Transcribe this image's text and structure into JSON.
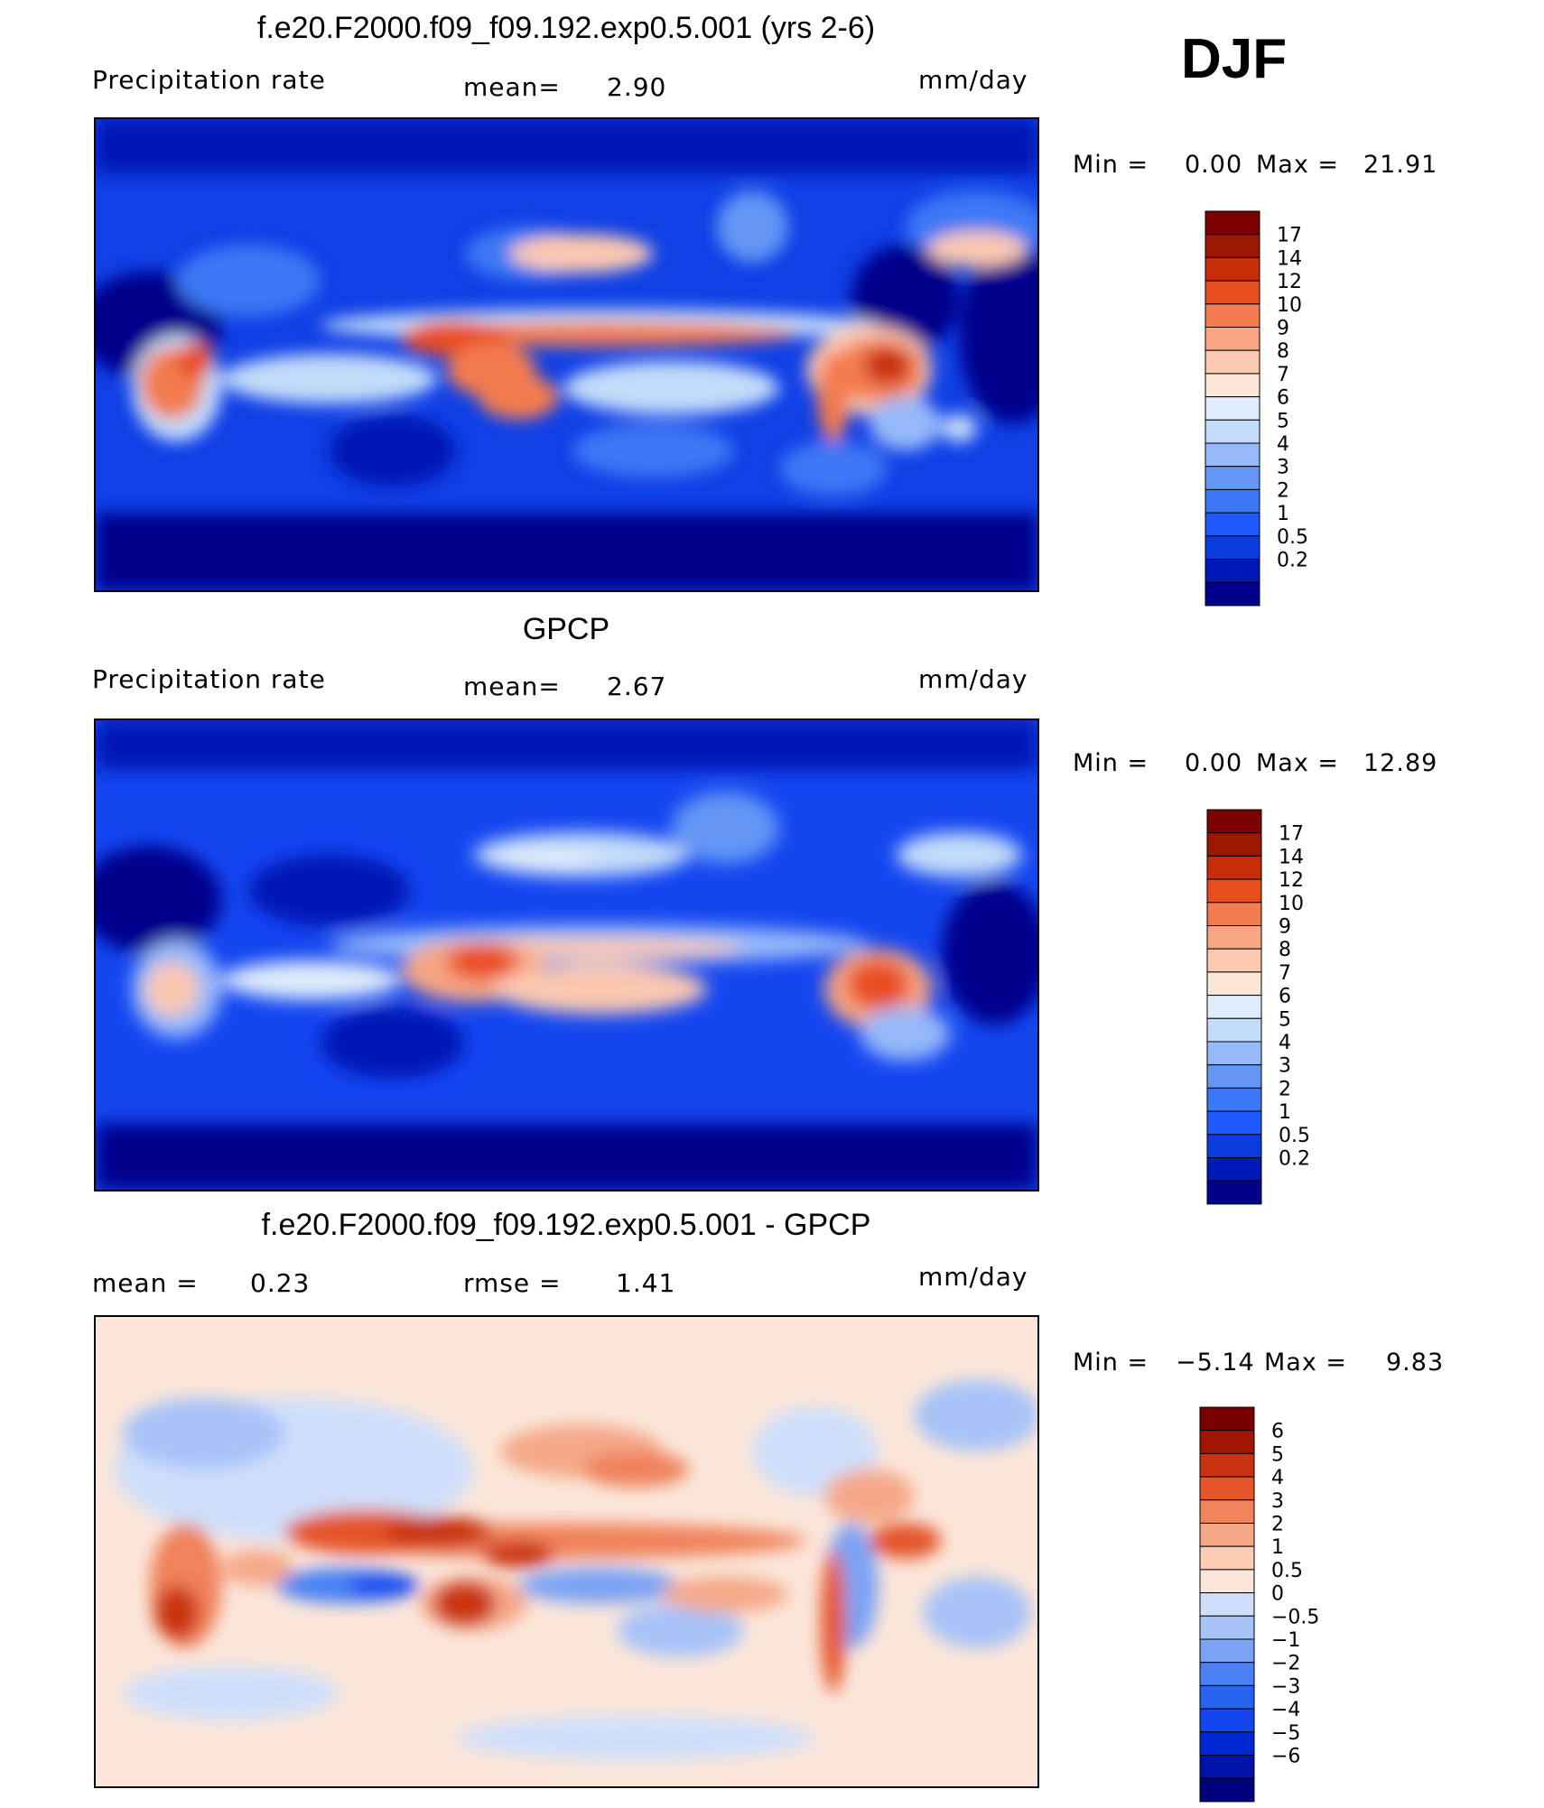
{
  "season": "DJF",
  "colors": {
    "precip": [
      "#00008b",
      "#0018b4",
      "#0a3ce0",
      "#1e5aff",
      "#3c78f5",
      "#6496f5",
      "#96b9fa",
      "#c3dcfa",
      "#dfecfb",
      "#fce6d8",
      "#fbc8b0",
      "#f7a582",
      "#f37c50",
      "#e94e21",
      "#c82d0a",
      "#9b1700",
      "#7c0000"
    ],
    "diff": [
      "#00007d",
      "#0012a8",
      "#0028d2",
      "#1446f0",
      "#2864f0",
      "#4a82f5",
      "#7aa2f5",
      "#a7c3f8",
      "#cfdffb",
      "#fbe6d9",
      "#fbcbb4",
      "#f5a888",
      "#f0825c",
      "#e4552c",
      "#c93410",
      "#a11600",
      "#7a0000"
    ]
  },
  "panels": [
    {
      "title": "f.e20.F2000.f09_f09.192.exp0.5.001 (yrs 2-6)",
      "left_label": "Precipitation rate",
      "middle_label": "mean=",
      "middle_value": "2.90",
      "units": "mm/day",
      "min_label": "Min =",
      "min_value": "0.00",
      "max_label": "Max =",
      "max_value": "21.91",
      "colorbar": [
        "17",
        "14",
        "12",
        "10",
        "9",
        "8",
        "7",
        "6",
        "5",
        "4",
        "3",
        "2",
        "1",
        "0.5",
        "0.2"
      ]
    },
    {
      "title": "GPCP",
      "left_label": "Precipitation rate",
      "middle_label": "mean=",
      "middle_value": "2.67",
      "units": "mm/day",
      "min_label": "Min =",
      "min_value": "0.00",
      "max_label": "Max =",
      "max_value": "12.89",
      "colorbar": [
        "17",
        "14",
        "12",
        "10",
        "9",
        "8",
        "7",
        "6",
        "5",
        "4",
        "3",
        "2",
        "1",
        "0.5",
        "0.2"
      ]
    },
    {
      "title": "f.e20.F2000.f09_f09.192.exp0.5.001 - GPCP",
      "left_label": "mean =",
      "left_value": "0.23",
      "middle_label": "rmse =",
      "middle_value": "1.41",
      "units": "mm/day",
      "min_label": "Min =",
      "min_value": "−5.14",
      "max_label": "Max =",
      "max_value": "9.83",
      "colorbar": [
        "6",
        "5",
        "4",
        "3",
        "2",
        "1",
        "0.5",
        "0",
        "−0.5",
        "−1",
        "−2",
        "−3",
        "−4",
        "−5",
        "−6"
      ]
    }
  ]
}
